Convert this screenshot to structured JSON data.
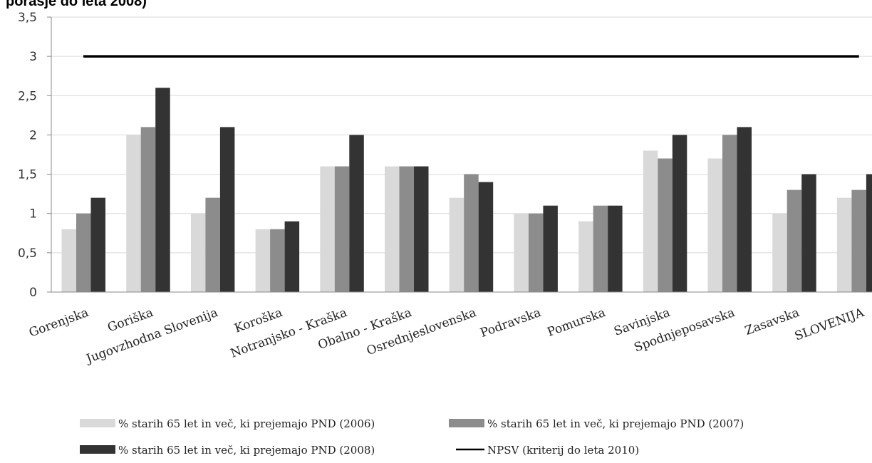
{
  "title_fragment": "porasje do leta 2008)",
  "chart_data": {
    "type": "bar",
    "categories": [
      "Gorenjska",
      "Goriška",
      "Jugovzhodna Slovenija",
      "Koroška",
      "Notranjsko - Kraška",
      "Obalno - Kraška",
      "Osrednjeslovenska",
      "Podravska",
      "Pomurska",
      "Savinjska",
      "Spodnjeposavska",
      "Zasavska",
      "SLOVENIJA"
    ],
    "series": [
      {
        "name": "% starih 65 let in več, ki prejemajo PND (2006)",
        "color": "#d9d9d9",
        "values": [
          0.8,
          2.0,
          1.0,
          0.8,
          1.6,
          1.6,
          1.2,
          1.0,
          0.9,
          1.8,
          1.7,
          1.0,
          1.2
        ]
      },
      {
        "name": "% starih 65 let in več, ki prejemajo PND (2007)",
        "color": "#8c8c8c",
        "values": [
          1.0,
          2.1,
          1.2,
          0.8,
          1.6,
          1.6,
          1.5,
          1.0,
          1.1,
          1.7,
          2.0,
          1.3,
          1.3
        ]
      },
      {
        "name": "% starih 65 let in več, ki prejemajo PND (2008)",
        "color": "#333333",
        "values": [
          1.2,
          2.6,
          2.1,
          0.9,
          2.0,
          1.6,
          1.4,
          1.1,
          1.1,
          2.0,
          2.1,
          1.5,
          1.5
        ]
      }
    ],
    "reference_line": {
      "name": "NPSV (kriterij do leta 2010)",
      "value": 3,
      "color": "#000000"
    },
    "yticks": [
      "0",
      "0,5",
      "1",
      "1,5",
      "2",
      "2,5",
      "3",
      "3,5"
    ],
    "ylim": [
      0,
      3.5
    ],
    "grid": true,
    "legend_position": "bottom"
  }
}
